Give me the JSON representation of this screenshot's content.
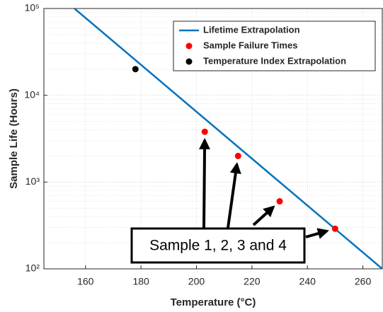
{
  "chart_data": {
    "type": "scatter",
    "xlabel": "Temperature (°C)",
    "ylabel": "Sample Life (Hours)",
    "xlim": [
      145,
      267
    ],
    "xticks": [
      160,
      180,
      200,
      220,
      240,
      260
    ],
    "ylim": [
      100,
      100000
    ],
    "log_y": true,
    "yticks": [
      {
        "value": 100,
        "label": "10²"
      },
      {
        "value": 1000,
        "label": "10³"
      },
      {
        "value": 10000,
        "label": "10⁴"
      },
      {
        "value": 100000,
        "label": "10⁵"
      }
    ],
    "grid": true,
    "legend": "upper right",
    "annotation": "Sample 1, 2, 3 and 4",
    "series": [
      {
        "name": "Lifetime Extrapolation",
        "type": "line",
        "color": "#0072bd",
        "x": [
          156,
          267
        ],
        "values": [
          100000,
          100
        ]
      },
      {
        "name": "Sample Failure Times",
        "type": "scatter",
        "color": "#ff0000",
        "x": [
          203,
          215,
          230,
          250
        ],
        "values": [
          3800,
          2000,
          600,
          290
        ]
      },
      {
        "name": "Temperature Index Extrapolation",
        "type": "scatter",
        "color": "#000000",
        "x": [
          178
        ],
        "values": [
          20000
        ]
      }
    ]
  }
}
